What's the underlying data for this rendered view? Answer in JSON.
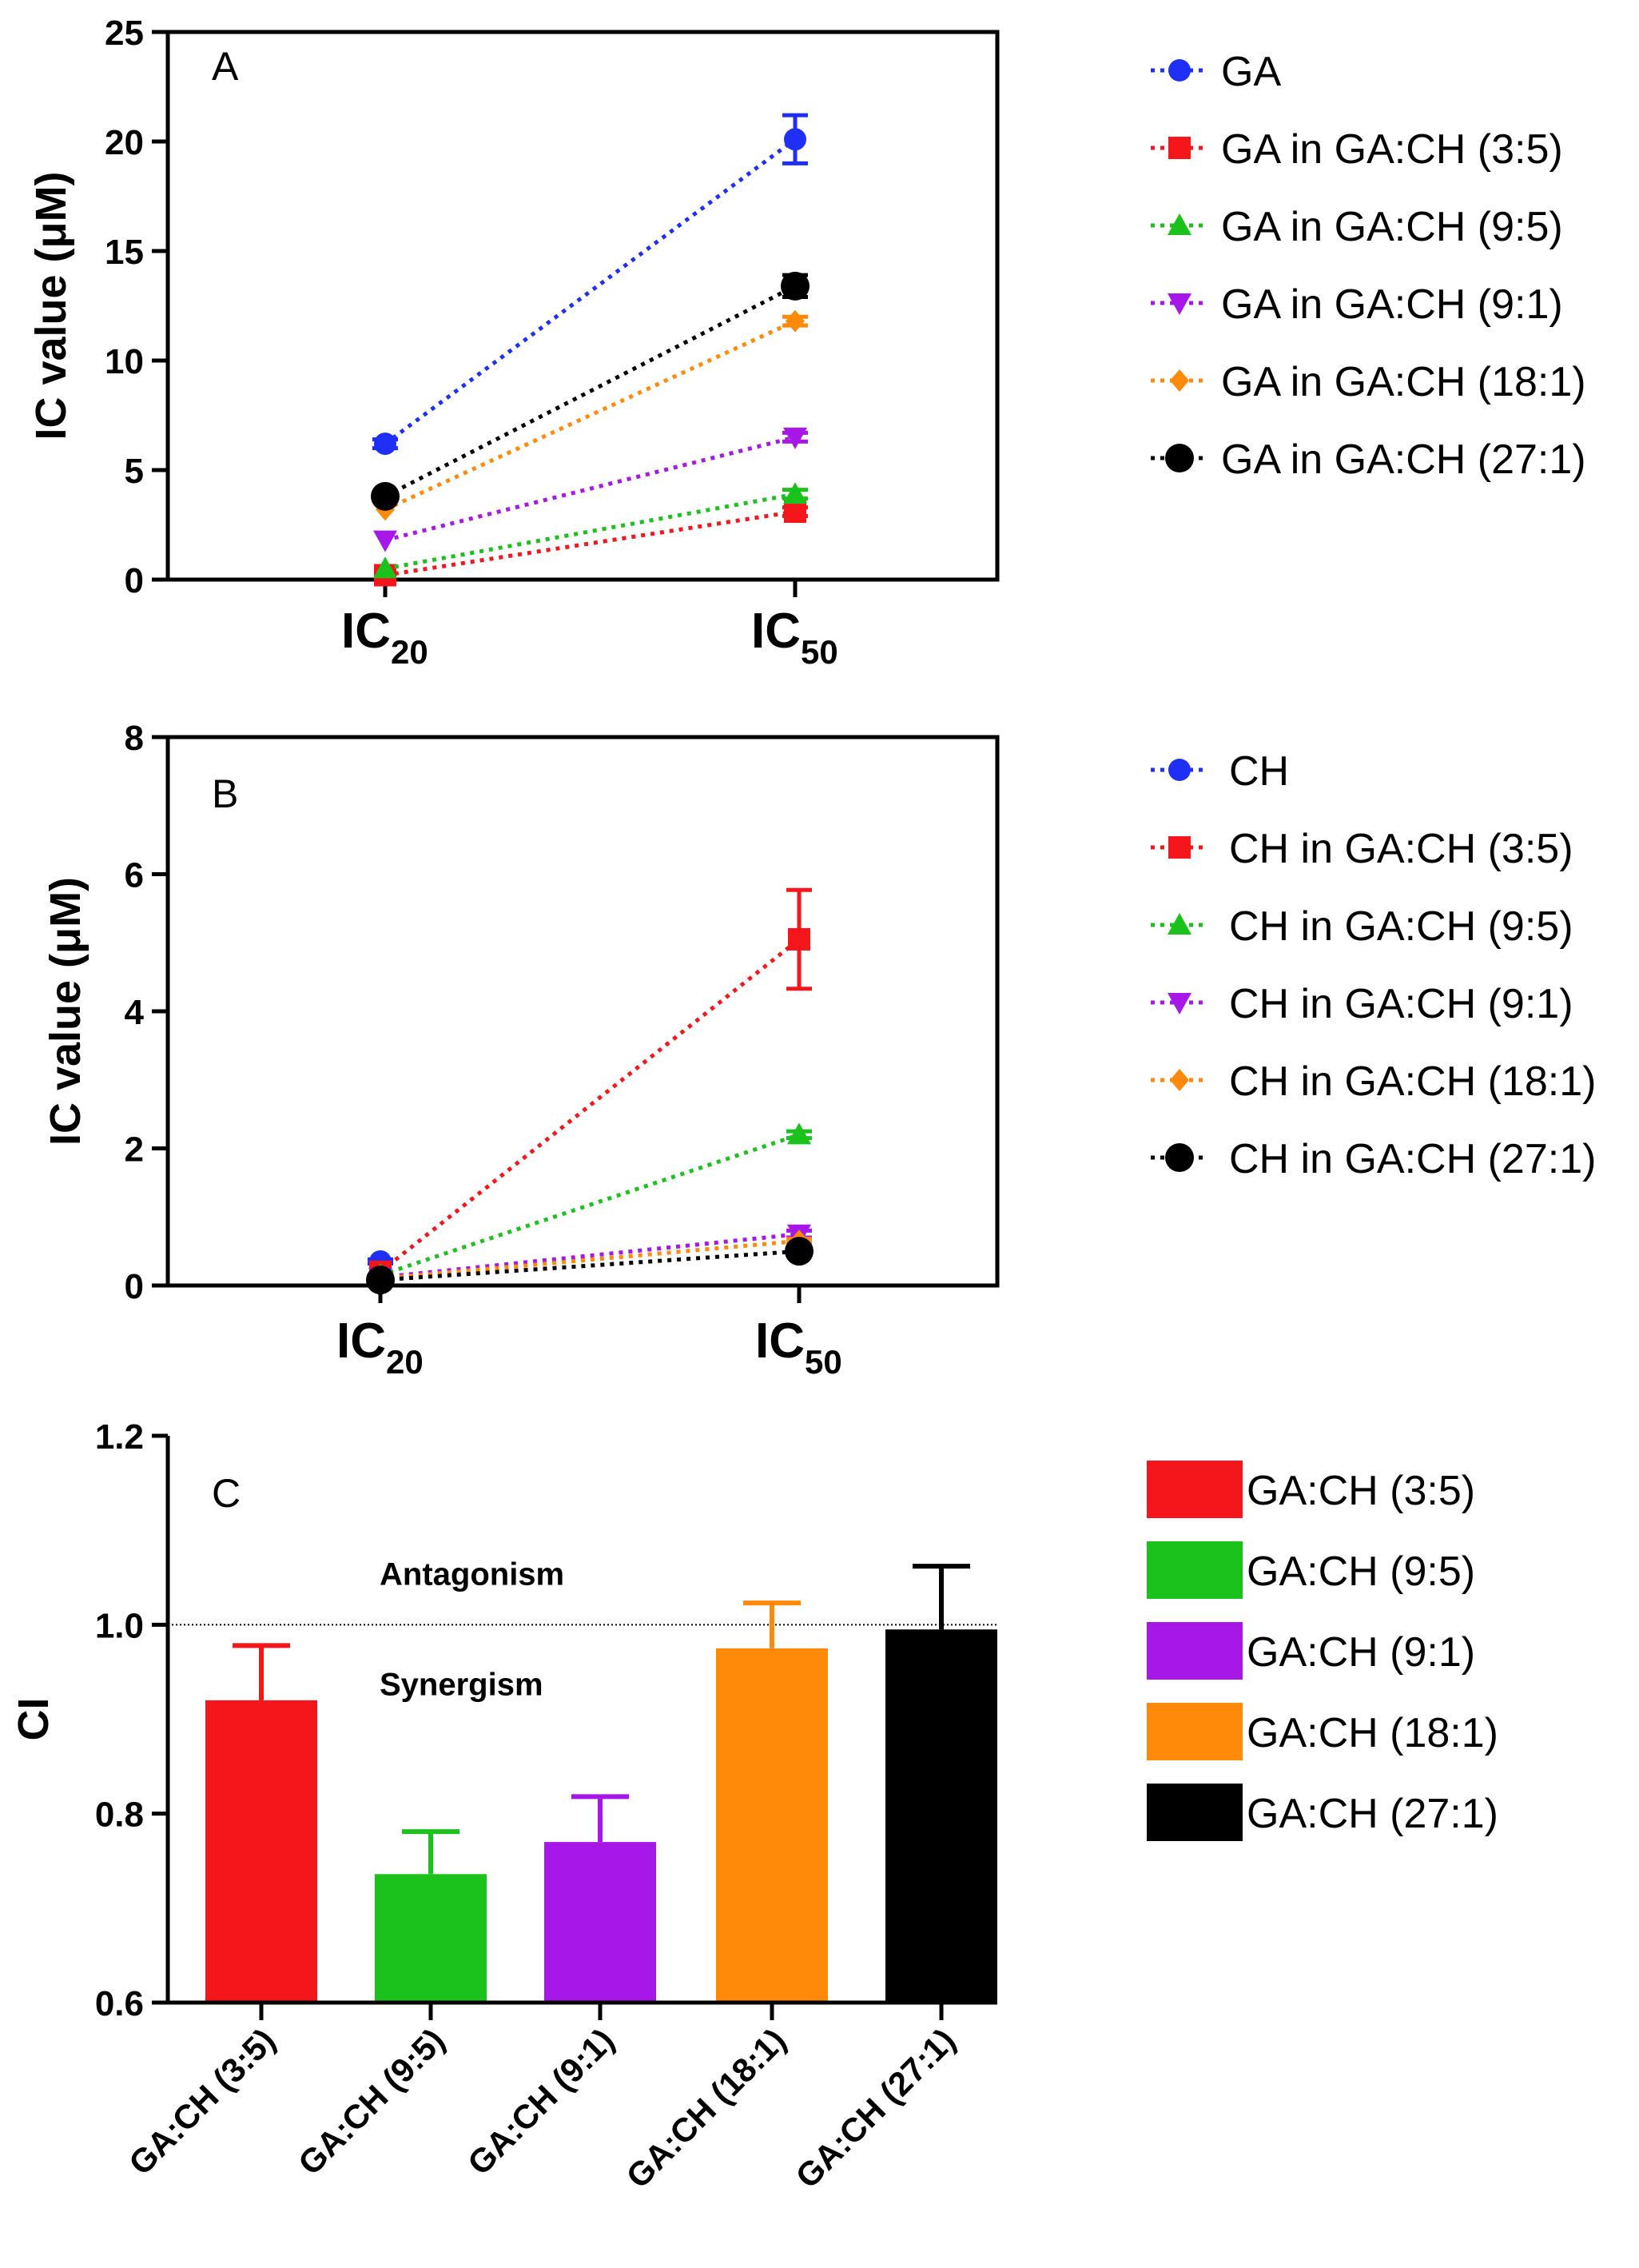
{
  "colors": {
    "blue": "#1f2ff5",
    "red": "#f5161b",
    "green": "#1cc21c",
    "purple": "#a718e8",
    "orange": "#ff8a0a",
    "black": "#000000"
  },
  "chart_data": [
    {
      "id": "A",
      "type": "line",
      "panel_label": "A",
      "ylabel": "IC value (μM)",
      "categories": [
        {
          "main": "IC",
          "sub": "20"
        },
        {
          "main": "IC",
          "sub": "50"
        }
      ],
      "ylim": [
        0,
        25
      ],
      "yticks": [
        "0",
        "5",
        "10",
        "15",
        "20",
        "25"
      ],
      "legend_position": "right",
      "series": [
        {
          "name": "GA",
          "color": "#1f2ff5",
          "marker": "circle",
          "values": [
            6.2,
            20.1
          ],
          "errors": [
            0.2,
            1.1
          ]
        },
        {
          "name": "GA in GA:CH (3:5)",
          "color": "#f5161b",
          "marker": "square",
          "values": [
            0.2,
            3.1
          ],
          "errors": [
            0,
            0.2
          ]
        },
        {
          "name": "GA in GA:CH (9:5)",
          "color": "#1cc21c",
          "marker": "triangle-up",
          "values": [
            0.5,
            3.9
          ],
          "errors": [
            0,
            0.2
          ]
        },
        {
          "name": "GA in GA:CH (9:1)",
          "color": "#a718e8",
          "marker": "triangle-down",
          "values": [
            1.8,
            6.5
          ],
          "errors": [
            0,
            0.2
          ]
        },
        {
          "name": "GA in GA:CH (18:1)",
          "color": "#ff8a0a",
          "marker": "diamond",
          "values": [
            3.2,
            11.8
          ],
          "errors": [
            0,
            0.2
          ]
        },
        {
          "name": "GA in GA:CH (27:1)",
          "color": "#000000",
          "marker": "circle-large",
          "values": [
            3.8,
            13.4
          ],
          "errors": [
            0.1,
            0.5
          ]
        }
      ]
    },
    {
      "id": "B",
      "type": "line",
      "panel_label": "B",
      "ylabel": "IC value (μM)",
      "categories": [
        {
          "main": "IC",
          "sub": "20"
        },
        {
          "main": "IC",
          "sub": "50"
        }
      ],
      "ylim": [
        0,
        8
      ],
      "yticks": [
        "0",
        "2",
        "4",
        "6",
        "8"
      ],
      "legend_position": "right",
      "series": [
        {
          "name": "CH",
          "color": "#1f2ff5",
          "marker": "circle",
          "values": [
            0.35,
            null
          ],
          "errors": [
            0.03,
            0
          ]
        },
        {
          "name": "CH in GA:CH (3:5)",
          "color": "#f5161b",
          "marker": "square",
          "values": [
            0.2,
            5.05
          ],
          "errors": [
            0,
            0.72
          ]
        },
        {
          "name": "CH in GA:CH (9:5)",
          "color": "#1cc21c",
          "marker": "triangle-up",
          "values": [
            0.15,
            2.2
          ],
          "errors": [
            0,
            0.05
          ]
        },
        {
          "name": "CH in GA:CH (9:1)",
          "color": "#a718e8",
          "marker": "triangle-down",
          "values": [
            0.12,
            0.75
          ],
          "errors": [
            0,
            0.05
          ]
        },
        {
          "name": "CH in GA:CH (18:1)",
          "color": "#ff8a0a",
          "marker": "diamond",
          "values": [
            0.1,
            0.65
          ],
          "errors": [
            0,
            0.03
          ]
        },
        {
          "name": "CH in GA:CH (27:1)",
          "color": "#000000",
          "marker": "circle-large",
          "values": [
            0.08,
            0.5
          ],
          "errors": [
            0,
            0.05
          ]
        }
      ]
    },
    {
      "id": "C",
      "type": "bar",
      "panel_label": "C",
      "ylabel": "CI",
      "categories": [
        "GA:CH (3:5)",
        "GA:CH  (9:5)",
        "GA:CH  (9:1)",
        "GA:CH  (18:1)",
        "GA:CH  (27:1)"
      ],
      "ylim": [
        0.6,
        1.2
      ],
      "yticks": [
        "0.6",
        "0.8",
        "1.0",
        "1.2"
      ],
      "reference_line": 1.0,
      "annotations": [
        "Antagonism",
        "Synergism"
      ],
      "legend_position": "right",
      "series": [
        {
          "name": "GA:CH  (3:5)",
          "color": "#f5161b",
          "value": 0.92,
          "error": 0.058
        },
        {
          "name": "GA:CH  (9:5)",
          "color": "#1cc21c",
          "value": 0.736,
          "error": 0.045
        },
        {
          "name": "GA:CH  (9:1)",
          "color": "#a718e8",
          "value": 0.77,
          "error": 0.048
        },
        {
          "name": "GA:CH  (18:1)",
          "color": "#ff8a0a",
          "value": 0.975,
          "error": 0.048
        },
        {
          "name": "GA:CH  (27:1)",
          "color": "#000000",
          "value": 0.995,
          "error": 0.067
        }
      ]
    }
  ]
}
